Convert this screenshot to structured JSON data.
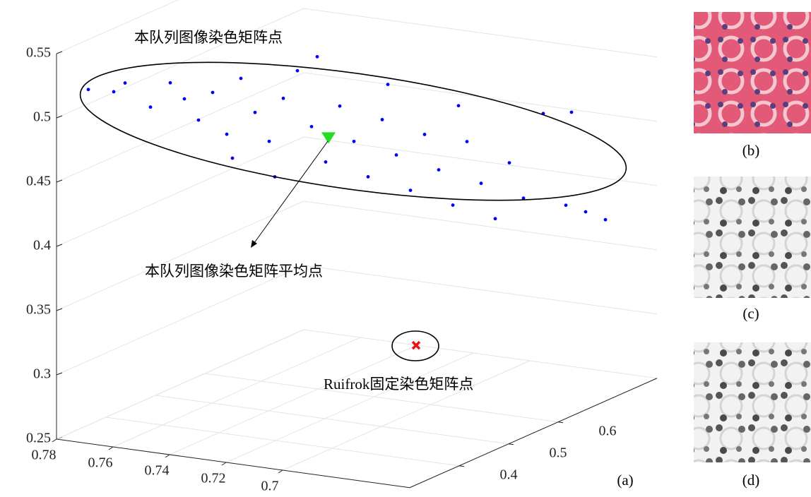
{
  "chart_data": {
    "type": "scatter3d",
    "xlim": [
      0.78,
      0.655
    ],
    "ylim": [
      0.3,
      0.8
    ],
    "zlim": [
      0.25,
      0.55
    ],
    "xticks": [
      0.78,
      0.76,
      0.74,
      0.72,
      0.7
    ],
    "yticks": [
      0.4,
      0.5,
      0.6
    ],
    "zticks": [
      0.25,
      0.3,
      0.35,
      0.4,
      0.45,
      0.5,
      0.55
    ],
    "grid": true,
    "series": [
      {
        "color": "#0000ff",
        "marker": "dot",
        "x": [
          0.795,
          0.786,
          0.782,
          0.773,
          0.766,
          0.761,
          0.756,
          0.751,
          0.746,
          0.741,
          0.736,
          0.731,
          0.726,
          0.721,
          0.716,
          0.711,
          0.706,
          0.701,
          0.696,
          0.691,
          0.686,
          0.681,
          0.676,
          0.671,
          0.666,
          0.661,
          0.656,
          0.651,
          0.646,
          0.641,
          0.634,
          0.626,
          0.619,
          0.612,
          0.624,
          0.714,
          0.729,
          0.744,
          0.689,
          0.664
        ],
        "y": [
          0.45,
          0.45,
          0.45,
          0.45,
          0.45,
          0.45,
          0.45,
          0.45,
          0.45,
          0.45,
          0.45,
          0.45,
          0.45,
          0.45,
          0.45,
          0.45,
          0.45,
          0.45,
          0.45,
          0.45,
          0.45,
          0.45,
          0.45,
          0.45,
          0.45,
          0.45,
          0.45,
          0.45,
          0.45,
          0.45,
          0.45,
          0.45,
          0.45,
          0.45,
          0.45,
          0.45,
          0.45,
          0.45,
          0.45,
          0.45
        ],
        "z": [
          0.492,
          0.493,
          0.501,
          0.485,
          0.506,
          0.495,
          0.48,
          0.503,
          0.472,
          0.517,
          0.492,
          0.471,
          0.506,
          0.529,
          0.487,
          0.461,
          0.506,
          0.48,
          0.454,
          0.5,
          0.474,
          0.448,
          0.493,
          0.467,
          0.441,
          0.492,
          0.461,
          0.435,
          0.48,
          0.454,
          0.522,
          0.453,
          0.45,
          0.446,
          0.526,
          0.542,
          0.444,
          0.454,
          0.528,
          0.519
        ]
      },
      {
        "color": "#22dd22",
        "marker": "triangle",
        "x": [
          0.71
        ],
        "y": [
          0.45
        ],
        "z": [
          0.48
        ]
      },
      {
        "color": "#ee1111",
        "marker": "cross",
        "x": [
          0.679
        ],
        "y": [
          0.45
        ],
        "z": [
          0.328
        ]
      }
    ],
    "annotations": [
      "本队列图像染色矩阵点",
      "本队列图像染色矩阵平均点",
      "Ruifrok固定染色矩阵点"
    ],
    "panel_labels": [
      "(a)",
      "(b)",
      "(c)",
      "(d)"
    ]
  }
}
